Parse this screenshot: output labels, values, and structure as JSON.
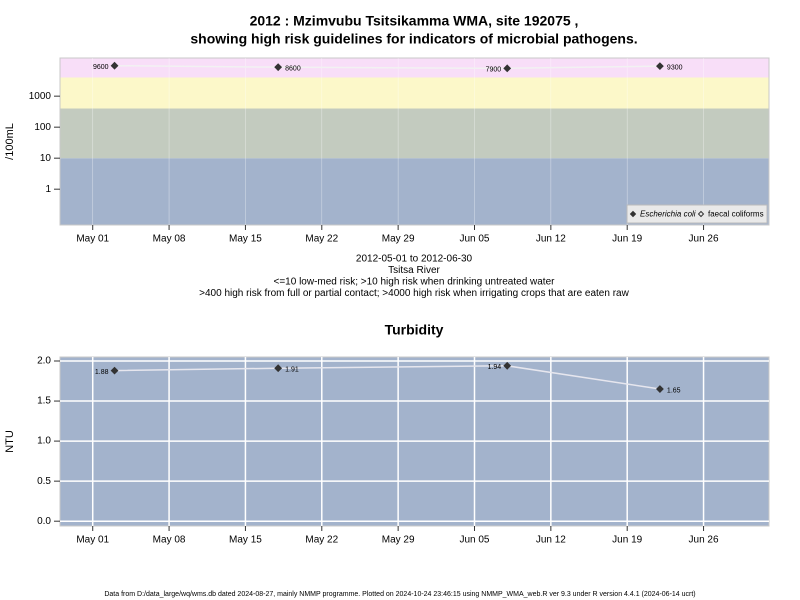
{
  "chart_data": [
    {
      "type": "line",
      "title": [
        "2012 : Mzimvubu Tsitsikamma WMA, site 192075 ,",
        "showing high risk guidelines for indicators of microbial pathogens."
      ],
      "notes": [
        "2012-05-01 to 2012-06-30",
        "Tsitsa River",
        "<=10 low-med risk; >10 high risk when drinking untreated water",
        ">400 high risk from full or partial contact; >4000 high risk when irrigating crops that are eaten raw"
      ],
      "y_label": "/100mL",
      "log": true,
      "x": [
        "2012-05-03",
        "2012-05-18",
        "2012-06-08",
        "2012-06-22"
      ],
      "series": [
        {
          "name": "Escherichia coli",
          "color": "#333333",
          "marker": "filled-diamond",
          "line_color": "#f2f2f2",
          "values": [
            9600,
            8600,
            7900,
            9300
          ]
        },
        {
          "name": "faecal coliforms",
          "color": "#333333",
          "marker": "open-diamond",
          "line_color": "#f2f2f2",
          "values": [
            null,
            null,
            null,
            null
          ]
        }
      ],
      "bands": [
        {
          "from": 0.07,
          "to": 10,
          "color": "#a3b3cc"
        },
        {
          "from": 10,
          "to": 400,
          "color": "#c3cbbf"
        },
        {
          "from": 400,
          "to": 4000,
          "color": "#fcf8c9"
        },
        {
          "from": 4000,
          "to": 17000,
          "color": "#f8def8"
        }
      ],
      "xlim": [
        "2012-04-28",
        "2012-07-02"
      ],
      "xticks": [
        {
          "value": "2012-05-01",
          "label": "May 01"
        },
        {
          "value": "2012-05-08",
          "label": "May 08"
        },
        {
          "value": "2012-05-15",
          "label": "May 15"
        },
        {
          "value": "2012-05-22",
          "label": "May 22"
        },
        {
          "value": "2012-05-29",
          "label": "May 29"
        },
        {
          "value": "2012-06-05",
          "label": "Jun 05"
        },
        {
          "value": "2012-06-12",
          "label": "Jun 12"
        },
        {
          "value": "2012-06-19",
          "label": "Jun 19"
        },
        {
          "value": "2012-06-26",
          "label": "Jun 26"
        }
      ],
      "ylim": [
        0.07,
        17000
      ],
      "yticks": [
        1,
        10,
        100,
        1000
      ],
      "grid": false,
      "legend": "bottom-right"
    },
    {
      "type": "line",
      "title": [
        "Turbidity"
      ],
      "y_label": "NTU",
      "log": false,
      "background": "#a3b3cc",
      "x": [
        "2012-05-03",
        "2012-05-18",
        "2012-06-08",
        "2012-06-22"
      ],
      "series": [
        {
          "color": "#333333",
          "marker": "filled-diamond",
          "line_color": "#e6e6ee",
          "values": [
            1.88,
            1.91,
            1.94,
            1.65
          ]
        }
      ],
      "xlim": [
        "2012-04-28",
        "2012-07-02"
      ],
      "xticks": [
        {
          "value": "2012-05-01",
          "label": "May 01"
        },
        {
          "value": "2012-05-08",
          "label": "May 08"
        },
        {
          "value": "2012-05-15",
          "label": "May 15"
        },
        {
          "value": "2012-05-22",
          "label": "May 22"
        },
        {
          "value": "2012-05-29",
          "label": "May 29"
        },
        {
          "value": "2012-06-05",
          "label": "Jun 05"
        },
        {
          "value": "2012-06-12",
          "label": "Jun 12"
        },
        {
          "value": "2012-06-19",
          "label": "Jun 19"
        },
        {
          "value": "2012-06-26",
          "label": "Jun 26"
        }
      ],
      "ylim": [
        -0.06,
        2.05
      ],
      "yticks": [
        {
          "value": 0,
          "label": "0.0"
        },
        0.5,
        {
          "value": 1,
          "label": "1.0"
        },
        1.5,
        {
          "value": 2,
          "label": "2.0"
        }
      ],
      "grid": true
    }
  ],
  "footer": "Data from D:/data_large/wq/wms.db dated 2024-08-27, mainly NMMP programme. Plotted on 2024-10-24 23:46:15 using NMMP_WMA_web.R ver 9.3 under R version 4.4.1 (2024-06-14 ucrt)"
}
